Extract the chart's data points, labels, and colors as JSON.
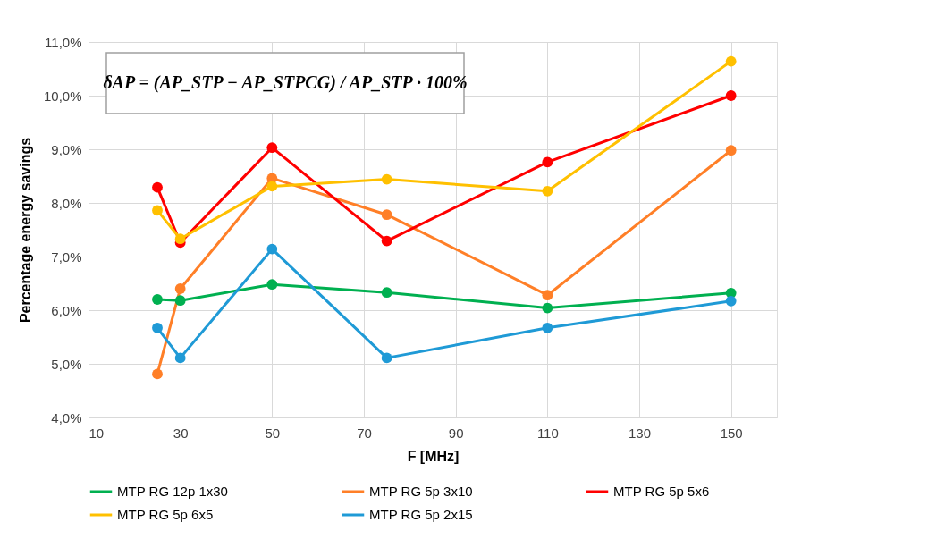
{
  "chart_data": {
    "type": "line",
    "xlabel": "F [MHz]",
    "ylabel": "Percentage energy savings",
    "annotations": [
      "δAP = (AP_STP − AP_STPCG) / AP_STP · 100%"
    ],
    "xlim": [
      10,
      160
    ],
    "xticks": [
      10,
      30,
      50,
      70,
      90,
      110,
      130,
      150
    ],
    "ylim": [
      4,
      11
    ],
    "yticks": [
      {
        "value": 4,
        "label": "4,0%"
      },
      {
        "value": 5,
        "label": "5,0%"
      },
      {
        "value": 6,
        "label": "6,0%"
      },
      {
        "value": 7,
        "label": "7,0%"
      },
      {
        "value": 8,
        "label": "8,0%"
      },
      {
        "value": 9,
        "label": "9,0%"
      },
      {
        "value": 10,
        "label": "10,0%"
      },
      {
        "value": 11,
        "label": "11,0%"
      }
    ],
    "grid": true,
    "legend": "bottom",
    "marker": "circle",
    "line_style": "solid",
    "x": [
      25,
      30,
      50,
      75,
      110,
      150
    ],
    "series": [
      {
        "name": "MTP RG 12p 1x30",
        "color": "#00b050",
        "values": [
          6.2,
          6.18,
          6.48,
          6.33,
          6.04,
          6.32
        ]
      },
      {
        "name": "MTP RG 5p 3x10",
        "color": "#ff7f27",
        "values": [
          4.81,
          6.4,
          8.46,
          7.78,
          6.28,
          8.98
        ]
      },
      {
        "name": "MTP RG 5p 5x6",
        "color": "#ff0000",
        "values": [
          8.29,
          7.26,
          9.03,
          7.29,
          8.76,
          10.0
        ]
      },
      {
        "name": "MTP RG 5p 6x5",
        "color": "#ffc000",
        "values": [
          7.86,
          7.33,
          8.31,
          8.44,
          8.22,
          10.64
        ]
      },
      {
        "name": "MTP RG 5p 2x15",
        "color": "#1f9ad6",
        "values": [
          5.67,
          5.11,
          7.14,
          5.11,
          5.67,
          6.17
        ]
      }
    ]
  }
}
